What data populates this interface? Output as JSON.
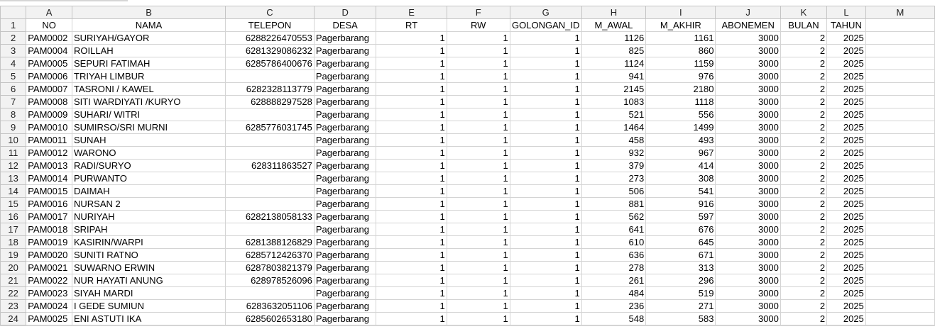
{
  "columns": [
    "A",
    "B",
    "C",
    "D",
    "E",
    "F",
    "G",
    "H",
    "I",
    "J",
    "K",
    "L",
    "M"
  ],
  "headers": [
    "NO",
    "NAMA",
    "TELEPON",
    "DESA",
    "RT",
    "RW",
    "GOLONGAN_ID",
    "M_AWAL",
    "M_AKHIR",
    "ABONEMEN",
    "BULAN",
    "TAHUN"
  ],
  "rows": [
    {
      "n": "2",
      "no": "PAM0002",
      "nama": "SURIYAH/GAYOR",
      "tel": "6288226470553",
      "desa": "Pagerbarang",
      "rt": "1",
      "rw": "1",
      "gol": "1",
      "awal": "1126",
      "akhir": "1161",
      "abon": "3000",
      "bulan": "2",
      "tahun": "2025"
    },
    {
      "n": "3",
      "no": "PAM0004",
      "nama": "ROILLAH",
      "tel": "6281329086232",
      "desa": "Pagerbarang",
      "rt": "1",
      "rw": "1",
      "gol": "1",
      "awal": "825",
      "akhir": "860",
      "abon": "3000",
      "bulan": "2",
      "tahun": "2025"
    },
    {
      "n": "4",
      "no": "PAM0005",
      "nama": "SEPURI FATIMAH",
      "tel": "6285786400676",
      "desa": "Pagerbarang",
      "rt": "1",
      "rw": "1",
      "gol": "1",
      "awal": "1124",
      "akhir": "1159",
      "abon": "3000",
      "bulan": "2",
      "tahun": "2025"
    },
    {
      "n": "5",
      "no": "PAM0006",
      "nama": "TRIYAH LIMBUR",
      "tel": "",
      "desa": "Pagerbarang",
      "rt": "1",
      "rw": "1",
      "gol": "1",
      "awal": "941",
      "akhir": "976",
      "abon": "3000",
      "bulan": "2",
      "tahun": "2025"
    },
    {
      "n": "6",
      "no": "PAM0007",
      "nama": "TASRONI / KAWEL",
      "tel": "6282328113779",
      "desa": "Pagerbarang",
      "rt": "1",
      "rw": "1",
      "gol": "1",
      "awal": "2145",
      "akhir": "2180",
      "abon": "3000",
      "bulan": "2",
      "tahun": "2025"
    },
    {
      "n": "7",
      "no": "PAM0008",
      "nama": "SITI WARDIYATI /KURYO",
      "tel": "628888297528",
      "desa": "Pagerbarang",
      "rt": "1",
      "rw": "1",
      "gol": "1",
      "awal": "1083",
      "akhir": "1118",
      "abon": "3000",
      "bulan": "2",
      "tahun": "2025"
    },
    {
      "n": "8",
      "no": "PAM0009",
      "nama": "SUHARI/ WITRI",
      "tel": "",
      "desa": "Pagerbarang",
      "rt": "1",
      "rw": "1",
      "gol": "1",
      "awal": "521",
      "akhir": "556",
      "abon": "3000",
      "bulan": "2",
      "tahun": "2025"
    },
    {
      "n": "9",
      "no": "PAM0010",
      "nama": "SUMIRSO/SRI MURNI",
      "tel": "6285776031745",
      "desa": "Pagerbarang",
      "rt": "1",
      "rw": "1",
      "gol": "1",
      "awal": "1464",
      "akhir": "1499",
      "abon": "3000",
      "bulan": "2",
      "tahun": "2025"
    },
    {
      "n": "10",
      "no": "PAM0011",
      "nama": "SUNAH",
      "tel": "",
      "desa": "Pagerbarang",
      "rt": "1",
      "rw": "1",
      "gol": "1",
      "awal": "458",
      "akhir": "493",
      "abon": "3000",
      "bulan": "2",
      "tahun": "2025"
    },
    {
      "n": "11",
      "no": "PAM0012",
      "nama": "WARONO",
      "tel": "",
      "desa": "Pagerbarang",
      "rt": "1",
      "rw": "1",
      "gol": "1",
      "awal": "932",
      "akhir": "967",
      "abon": "3000",
      "bulan": "2",
      "tahun": "2025"
    },
    {
      "n": "12",
      "no": "PAM0013",
      "nama": "RADI/SURYO",
      "tel": "628311863527",
      "desa": "Pagerbarang",
      "rt": "1",
      "rw": "1",
      "gol": "1",
      "awal": "379",
      "akhir": "414",
      "abon": "3000",
      "bulan": "2",
      "tahun": "2025"
    },
    {
      "n": "13",
      "no": "PAM0014",
      "nama": "PURWANTO",
      "tel": "",
      "desa": "Pagerbarang",
      "rt": "1",
      "rw": "1",
      "gol": "1",
      "awal": "273",
      "akhir": "308",
      "abon": "3000",
      "bulan": "2",
      "tahun": "2025"
    },
    {
      "n": "14",
      "no": "PAM0015",
      "nama": "DAIMAH",
      "tel": "",
      "desa": "Pagerbarang",
      "rt": "1",
      "rw": "1",
      "gol": "1",
      "awal": "506",
      "akhir": "541",
      "abon": "3000",
      "bulan": "2",
      "tahun": "2025"
    },
    {
      "n": "15",
      "no": "PAM0016",
      "nama": "NURSAN 2",
      "tel": "",
      "desa": "Pagerbarang",
      "rt": "1",
      "rw": "1",
      "gol": "1",
      "awal": "881",
      "akhir": "916",
      "abon": "3000",
      "bulan": "2",
      "tahun": "2025"
    },
    {
      "n": "16",
      "no": "PAM0017",
      "nama": "NURIYAH",
      "tel": "6282138058133",
      "desa": "Pagerbarang",
      "rt": "1",
      "rw": "1",
      "gol": "1",
      "awal": "562",
      "akhir": "597",
      "abon": "3000",
      "bulan": "2",
      "tahun": "2025"
    },
    {
      "n": "17",
      "no": "PAM0018",
      "nama": "SRIPAH",
      "tel": "",
      "desa": "Pagerbarang",
      "rt": "1",
      "rw": "1",
      "gol": "1",
      "awal": "641",
      "akhir": "676",
      "abon": "3000",
      "bulan": "2",
      "tahun": "2025"
    },
    {
      "n": "18",
      "no": "PAM0019",
      "nama": "KASIRIN/WARPI",
      "tel": "6281388126829",
      "desa": "Pagerbarang",
      "rt": "1",
      "rw": "1",
      "gol": "1",
      "awal": "610",
      "akhir": "645",
      "abon": "3000",
      "bulan": "2",
      "tahun": "2025"
    },
    {
      "n": "19",
      "no": "PAM0020",
      "nama": "SUNITI RATNO",
      "tel": "6285712426370",
      "desa": "Pagerbarang",
      "rt": "1",
      "rw": "1",
      "gol": "1",
      "awal": "636",
      "akhir": "671",
      "abon": "3000",
      "bulan": "2",
      "tahun": "2025"
    },
    {
      "n": "20",
      "no": "PAM0021",
      "nama": "SUWARNO ERWIN",
      "tel": "6287803821379",
      "desa": "Pagerbarang",
      "rt": "1",
      "rw": "1",
      "gol": "1",
      "awal": "278",
      "akhir": "313",
      "abon": "3000",
      "bulan": "2",
      "tahun": "2025"
    },
    {
      "n": "21",
      "no": "PAM0022",
      "nama": "NUR HAYATI ANUNG",
      "tel": "628978526096",
      "desa": "Pagerbarang",
      "rt": "1",
      "rw": "1",
      "gol": "1",
      "awal": "261",
      "akhir": "296",
      "abon": "3000",
      "bulan": "2",
      "tahun": "2025"
    },
    {
      "n": "22",
      "no": "PAM0023",
      "nama": "SIYAH MARDI",
      "tel": "",
      "desa": "Pagerbarang",
      "rt": "1",
      "rw": "1",
      "gol": "1",
      "awal": "484",
      "akhir": "519",
      "abon": "3000",
      "bulan": "2",
      "tahun": "2025"
    },
    {
      "n": "23",
      "no": "PAM0024",
      "nama": "I GEDE SUMIUN",
      "tel": "6283632051106",
      "desa": "Pagerbarang",
      "rt": "1",
      "rw": "1",
      "gol": "1",
      "awal": "236",
      "akhir": "271",
      "abon": "3000",
      "bulan": "2",
      "tahun": "2025"
    },
    {
      "n": "24",
      "no": "PAM0025",
      "nama": "ENI ASTUTI IKA",
      "tel": "6285602653180",
      "desa": "Pagerbarang",
      "rt": "1",
      "rw": "1",
      "gol": "1",
      "awal": "548",
      "akhir": "583",
      "abon": "3000",
      "bulan": "2",
      "tahun": "2025"
    }
  ]
}
